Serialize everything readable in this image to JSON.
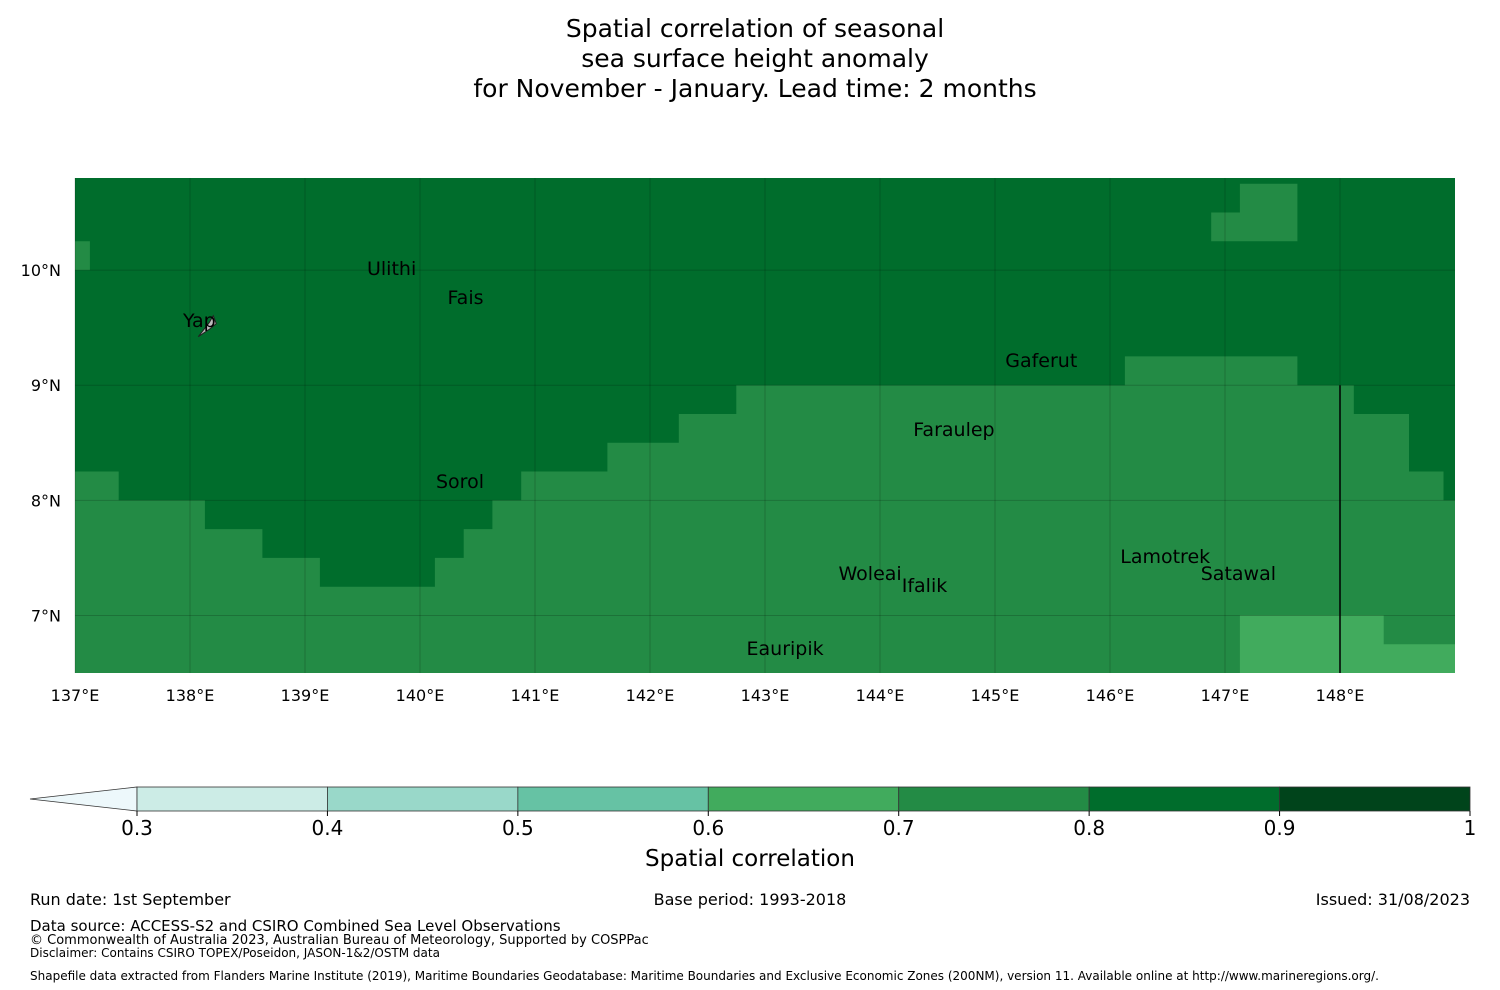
{
  "title": {
    "line1": "Spatial correlation of seasonal",
    "line2": "sea surface height anomaly",
    "line3": "for November - January. Lead time: 2 months"
  },
  "map": {
    "lon_range": [
      137.0,
      149.0
    ],
    "lat_range": [
      6.5,
      10.8
    ],
    "lon_ticks": [
      {
        "value": 137,
        "label": "137°E"
      },
      {
        "value": 138,
        "label": "138°E"
      },
      {
        "value": 139,
        "label": "139°E"
      },
      {
        "value": 140,
        "label": "140°E"
      },
      {
        "value": 141,
        "label": "141°E"
      },
      {
        "value": 142,
        "label": "142°E"
      },
      {
        "value": 143,
        "label": "143°E"
      },
      {
        "value": 144,
        "label": "144°E"
      },
      {
        "value": 145,
        "label": "145°E"
      },
      {
        "value": 146,
        "label": "146°E"
      },
      {
        "value": 147,
        "label": "147°E"
      },
      {
        "value": 148,
        "label": "148°E"
      }
    ],
    "lat_ticks": [
      {
        "value": 10,
        "label": "10°N"
      },
      {
        "value": 9,
        "label": "9°N"
      },
      {
        "value": 8,
        "label": "8°N"
      },
      {
        "value": 7,
        "label": "7°N"
      }
    ],
    "colors": {
      "c08": "#006d2c",
      "c07": "#238b45",
      "c06": "#41ab5d",
      "border": "#000000"
    },
    "regions": [
      {
        "class": "0.8-0.9",
        "color": "#006d2c",
        "poly": [
          [
            137,
            10.8
          ],
          [
            149,
            10.8
          ],
          [
            149,
            8
          ],
          [
            148.9,
            8
          ],
          [
            148.9,
            8.25
          ],
          [
            148.6,
            8.25
          ],
          [
            148.6,
            8.75
          ],
          [
            148.12,
            8.75
          ],
          [
            148.12,
            9
          ],
          [
            147.63,
            9
          ],
          [
            147.63,
            9.25
          ],
          [
            146.13,
            9.25
          ],
          [
            146.13,
            9
          ],
          [
            142.75,
            9
          ],
          [
            142.75,
            8.75
          ],
          [
            142.25,
            8.75
          ],
          [
            142.25,
            8.5
          ],
          [
            141.63,
            8.5
          ],
          [
            141.63,
            8.25
          ],
          [
            140.88,
            8.25
          ],
          [
            140.88,
            8
          ],
          [
            140.63,
            8
          ],
          [
            140.63,
            7.75
          ],
          [
            140.38,
            7.75
          ],
          [
            140.38,
            7.5
          ],
          [
            140.13,
            7.5
          ],
          [
            140.13,
            7.25
          ],
          [
            139.13,
            7.25
          ],
          [
            139.13,
            7.5
          ],
          [
            138.63,
            7.5
          ],
          [
            138.63,
            7.75
          ],
          [
            138.13,
            7.75
          ],
          [
            138.13,
            8
          ],
          [
            137.38,
            8
          ],
          [
            137.38,
            8.25
          ],
          [
            137,
            8.25
          ]
        ]
      },
      {
        "class": "0.7-0.8",
        "color": "#238b45",
        "poly": [
          [
            146.88,
            10.75
          ],
          [
            147.63,
            10.75
          ],
          [
            147.63,
            10.25
          ],
          [
            146.88,
            10.25
          ],
          [
            146.88,
            10.5
          ],
          [
            147.13,
            10.5
          ],
          [
            147.13,
            10.75
          ]
        ]
      },
      {
        "class": "0.7-0.8",
        "color": "#238b45",
        "poly": [
          [
            137,
            10.25
          ],
          [
            137.13,
            10.25
          ],
          [
            137.13,
            10
          ],
          [
            137,
            10
          ]
        ]
      },
      {
        "class": "0.6-0.7",
        "color": "#41ab5d",
        "poly": [
          [
            147.13,
            7
          ],
          [
            148.38,
            7
          ],
          [
            148.38,
            6.75
          ],
          [
            149,
            6.75
          ],
          [
            149,
            6.5
          ],
          [
            147.13,
            6.5
          ]
        ]
      }
    ],
    "boundary_lon": 148.0,
    "boundary_lat_range": [
      6.5,
      9.0
    ],
    "places": [
      {
        "name": "Ulithi",
        "lon": 139.8,
        "lat": 10.0
      },
      {
        "name": "Fais",
        "lon": 140.5,
        "lat": 9.75
      },
      {
        "name": "Yap",
        "lon": 138.2,
        "lat": 9.55
      },
      {
        "name": "Gaferut",
        "lon": 145.35,
        "lat": 9.2
      },
      {
        "name": "Faraulep",
        "lon": 144.55,
        "lat": 8.6
      },
      {
        "name": "Sorol",
        "lon": 140.4,
        "lat": 8.15
      },
      {
        "name": "Woleai",
        "lon": 143.9,
        "lat": 7.35
      },
      {
        "name": "Ifalik",
        "lon": 144.45,
        "lat": 7.25
      },
      {
        "name": "Lamotrek",
        "lon": 146.35,
        "lat": 7.5
      },
      {
        "name": "Satawal",
        "lon": 147.05,
        "lat": 7.35
      },
      {
        "name": "Eauripik",
        "lon": 143.1,
        "lat": 6.7
      }
    ]
  },
  "colorbar": {
    "label": "Spatial correlation",
    "boundaries": [
      0.3,
      0.4,
      0.5,
      0.6,
      0.7,
      0.8,
      0.9,
      1.0
    ],
    "tick_labels": [
      "0.3",
      "0.4",
      "0.5",
      "0.6",
      "0.7",
      "0.8",
      "0.9",
      "1"
    ],
    "under_color": "#edf8fb",
    "colors": [
      "#ccece6",
      "#99d8c9",
      "#66c2a4",
      "#41ab5d",
      "#238b45",
      "#006d2c",
      "#00441b"
    ]
  },
  "footer": {
    "run_date": "Run date: 1st September",
    "base_period": "Base period: 1993-2018",
    "issued": "Issued: 31/08/2023",
    "data_source": "Data source: ACCESS-S2 and CSIRO Combined Sea Level Observations",
    "copyright": "© Commonwealth of Australia 2023, Australian Bureau of Meteorology, Supported by COSPPac",
    "disclaimer": "Disclaimer: Contains CSIRO TOPEX/Poseidon, JASON-1&2/OSTM data",
    "shapefile": "Shapefile data extracted from Flanders Marine Institute (2019), Maritime Boundaries Geodatabase: Maritime Boundaries and Exclusive Economic Zones (200NM), version 11. Available online at http://www.marineregions.org/."
  }
}
